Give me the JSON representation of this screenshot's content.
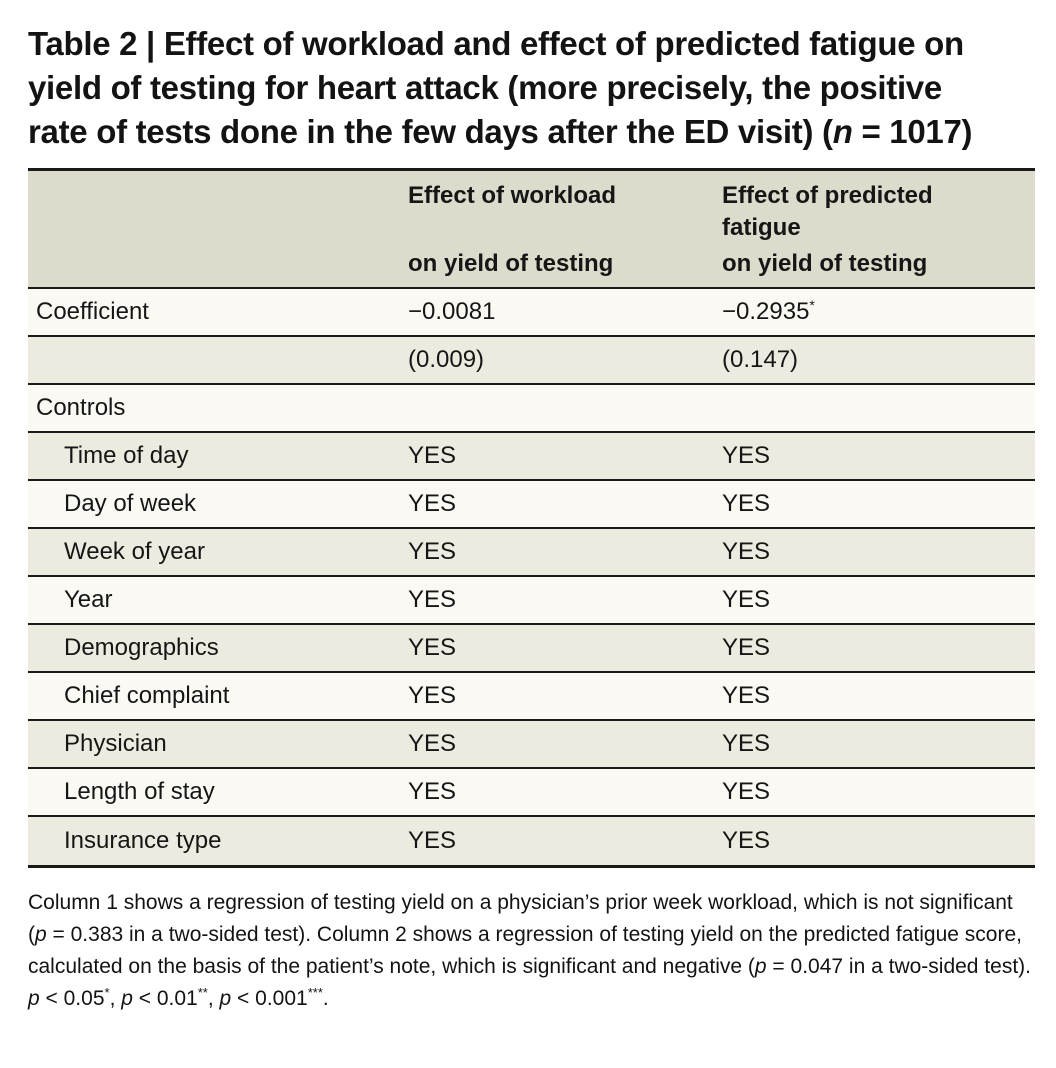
{
  "title": {
    "line1": "Table 2 | Effect of workload and effect of predicted fatigue on",
    "line2": "yield of testing for heart attack (more precisely, the positive",
    "line3_pre": "rate of tests done in the few days after the ED visit) (",
    "line3_italic": "n",
    "line3_post": " = 1017)"
  },
  "table": {
    "header": {
      "col2": {
        "line1": "Effect of workload",
        "sub": "on yield of testing"
      },
      "col3": {
        "line1": "Effect of predicted",
        "line2": "fatigue",
        "sub": "on yield of testing"
      }
    },
    "rows": [
      {
        "label": "Coefficient",
        "v1": "−0.0081",
        "v2": "−0.2935",
        "v2_sup": "*"
      },
      {
        "label": "",
        "v1": "(0.009)",
        "v2": "(0.147)"
      },
      {
        "label": "Controls",
        "v1": "",
        "v2": ""
      },
      {
        "label": "Time of day",
        "v1": "YES",
        "v2": "YES"
      },
      {
        "label": "Day of week",
        "v1": "YES",
        "v2": "YES"
      },
      {
        "label": "Week of year",
        "v1": "YES",
        "v2": "YES"
      },
      {
        "label": "Year",
        "v1": "YES",
        "v2": "YES"
      },
      {
        "label": "Demographics",
        "v1": "YES",
        "v2": "YES"
      },
      {
        "label": "Chief complaint",
        "v1": "YES",
        "v2": "YES"
      },
      {
        "label": "Physician",
        "v1": "YES",
        "v2": "YES"
      },
      {
        "label": "Length of stay",
        "v1": "YES",
        "v2": "YES"
      },
      {
        "label": "Insurance type",
        "v1": "YES",
        "v2": "YES"
      }
    ]
  },
  "footnote": {
    "s1": "Column 1 shows a regression of testing yield on a physician’s prior week workload, which is not significant (",
    "p1": "p",
    "s2": " = 0.383 in a two-sided test). Column 2 shows a regression of testing yield on the predicted fatigue score, calculated on the basis of the patient’s note, which is significant and negative (",
    "p2": "p",
    "s3": " = 0.047 in a two-sided test).",
    "sig": {
      "p1": "p",
      "v1": " < 0.05",
      "a1": "*",
      "c1": ", ",
      "p2": "p",
      "v2": " < 0.01",
      "a2": "**",
      "c2": ", ",
      "p3": "p",
      "v3": " < 0.001",
      "a3": "***",
      "end": "."
    }
  },
  "colors": {
    "header_bg": "#dcdbcc",
    "row_dark_bg": "#edebe0",
    "row_light_bg": "#faf9f4",
    "border": "#1a1a1a",
    "text": "#131313"
  }
}
